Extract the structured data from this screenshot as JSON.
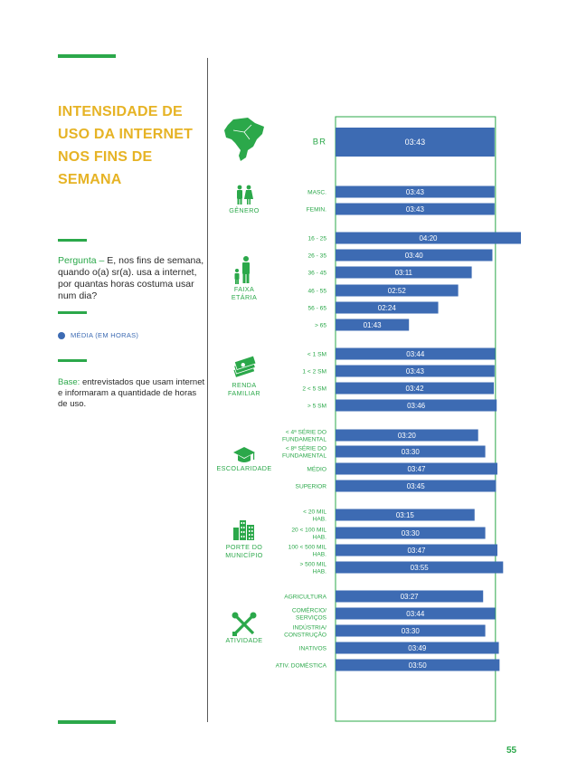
{
  "title": "INTENSIDADE DE USO DA INTERNET NOS FINS DE SEMANA",
  "question": {
    "lead": "Pergunta –",
    "text": "E, nos fins de semana, quando o(a) sr(a). usa a internet, por quantas horas costuma usar num dia?"
  },
  "legend": {
    "label": "MÉDIA (EM HORAS)",
    "color": "#3d6bb3"
  },
  "base": {
    "lead": "Base:",
    "text": "entrevistados que usam internet e informaram a quantidade de horas de uso."
  },
  "page_number": "55",
  "colors": {
    "accent": "#2ba84a",
    "title": "#e6b325",
    "bar": "#3d6bb3"
  },
  "chart_data": {
    "type": "bar",
    "orientation": "horizontal",
    "value_unit": "hours (hh:mm)",
    "groups": [
      {
        "name": "",
        "icon": "brazil-map-icon",
        "items": [
          {
            "label": [
              "BR"
            ],
            "minutes": 223,
            "display": "03:43"
          }
        ]
      },
      {
        "name": [
          "GÊNERO"
        ],
        "icon": "people-icon",
        "items": [
          {
            "label": [
              "MASC."
            ],
            "minutes": 223,
            "display": "03:43"
          },
          {
            "label": [
              "FEMIN."
            ],
            "minutes": 223,
            "display": "03:43"
          }
        ]
      },
      {
        "name": [
          "FAIXA",
          "ETÁRIA"
        ],
        "icon": "family-icon",
        "items": [
          {
            "label": [
              "16 - 25"
            ],
            "minutes": 260,
            "display": "04:20"
          },
          {
            "label": [
              "26 - 35"
            ],
            "minutes": 220,
            "display": "03:40"
          },
          {
            "label": [
              "36 - 45"
            ],
            "minutes": 191,
            "display": "03:11"
          },
          {
            "label": [
              "46 - 55"
            ],
            "minutes": 172,
            "display": "02:52"
          },
          {
            "label": [
              "56 - 65"
            ],
            "minutes": 144,
            "display": "02:24"
          },
          {
            "label": [
              "> 65"
            ],
            "minutes": 103,
            "display": "01:43"
          }
        ]
      },
      {
        "name": [
          "RENDA",
          "FAMILIAR"
        ],
        "icon": "money-icon",
        "items": [
          {
            "label": [
              "< 1 SM"
            ],
            "minutes": 224,
            "display": "03:44"
          },
          {
            "label": [
              "1 < 2 SM"
            ],
            "minutes": 223,
            "display": "03:43"
          },
          {
            "label": [
              "2 < 5 SM"
            ],
            "minutes": 222,
            "display": "03:42"
          },
          {
            "label": [
              "> 5 SM"
            ],
            "minutes": 226,
            "display": "03:46"
          }
        ]
      },
      {
        "name": [
          "ESCOLARIDADE"
        ],
        "icon": "graduation-cap-icon",
        "items": [
          {
            "label": [
              "< 4ª SÉRIE DO",
              "FUNDAMENTAL"
            ],
            "minutes": 200,
            "display": "03:20"
          },
          {
            "label": [
              "< 8ª SÉRIE DO",
              "FUNDAMENTAL"
            ],
            "minutes": 210,
            "display": "03:30"
          },
          {
            "label": [
              "MÉDIO"
            ],
            "minutes": 227,
            "display": "03:47"
          },
          {
            "label": [
              "SUPERIOR"
            ],
            "minutes": 225,
            "display": "03:45"
          }
        ]
      },
      {
        "name": [
          "PORTE DO",
          "MUNICÍPIO"
        ],
        "icon": "city-icon",
        "items": [
          {
            "label": [
              "< 20 MIL",
              "HAB."
            ],
            "minutes": 195,
            "display": "03:15"
          },
          {
            "label": [
              "20 < 100 MIL",
              "HAB."
            ],
            "minutes": 210,
            "display": "03:30"
          },
          {
            "label": [
              "100 < 500 MIL",
              "HAB."
            ],
            "minutes": 227,
            "display": "03:47"
          },
          {
            "label": [
              "> 500 MIL",
              "HAB."
            ],
            "minutes": 235,
            "display": "03:55"
          }
        ]
      },
      {
        "name": [
          "ATIVIDADE"
        ],
        "icon": "tools-icon",
        "items": [
          {
            "label": [
              "AGRICULTURA"
            ],
            "minutes": 207,
            "display": "03:27"
          },
          {
            "label": [
              "COMÉRCIO/",
              "SERVIÇOS"
            ],
            "minutes": 224,
            "display": "03:44"
          },
          {
            "label": [
              "INDÚSTRIA/",
              "CONSTRUÇÃO"
            ],
            "minutes": 210,
            "display": "03:30"
          },
          {
            "label": [
              "INATIVOS"
            ],
            "minutes": 229,
            "display": "03:49"
          },
          {
            "label": [
              "ATIV. DOMÉSTICA"
            ],
            "minutes": 230,
            "display": "03:50"
          }
        ]
      }
    ]
  }
}
